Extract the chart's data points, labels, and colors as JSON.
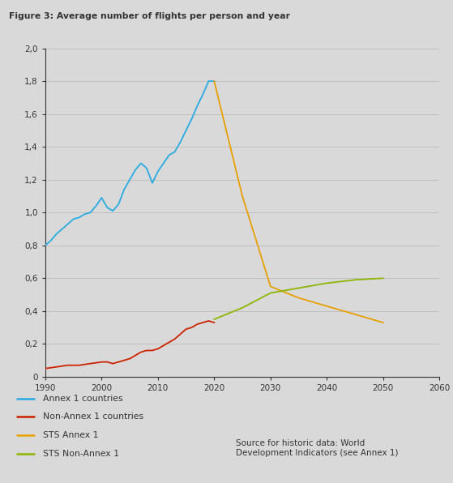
{
  "title": "Figure 3: Average number of flights per person and year",
  "background_color": "#d9d9d9",
  "plot_background_color": "#d9d9d9",
  "xlim": [
    1990,
    2060
  ],
  "ylim": [
    0,
    2.0
  ],
  "yticks": [
    0,
    0.2,
    0.4,
    0.6,
    0.8,
    1.0,
    1.2,
    1.4,
    1.6,
    1.8,
    2.0
  ],
  "xticks": [
    1990,
    2000,
    2010,
    2020,
    2030,
    2040,
    2050,
    2060
  ],
  "ytick_labels": [
    "0",
    "0,2",
    "0,4",
    "0,6",
    "0,8",
    "1,0",
    "1,2",
    "1,4",
    "1,6",
    "1,8",
    "2,0"
  ],
  "annex1": {
    "x": [
      1990,
      1991,
      1992,
      1993,
      1994,
      1995,
      1996,
      1997,
      1998,
      1999,
      2000,
      2001,
      2002,
      2003,
      2004,
      2005,
      2006,
      2007,
      2008,
      2009,
      2010,
      2011,
      2012,
      2013,
      2014,
      2015,
      2016,
      2017,
      2018,
      2019,
      2020
    ],
    "y": [
      0.8,
      0.83,
      0.87,
      0.9,
      0.93,
      0.96,
      0.97,
      0.99,
      1.0,
      1.04,
      1.09,
      1.03,
      1.01,
      1.05,
      1.14,
      1.2,
      1.26,
      1.3,
      1.27,
      1.18,
      1.25,
      1.3,
      1.35,
      1.37,
      1.43,
      1.5,
      1.57,
      1.65,
      1.72,
      1.8,
      1.8
    ],
    "color": "#29abe2",
    "label": "Annex 1 countries"
  },
  "non_annex1": {
    "x": [
      1990,
      1991,
      1992,
      1993,
      1994,
      1995,
      1996,
      1997,
      1998,
      1999,
      2000,
      2001,
      2002,
      2003,
      2004,
      2005,
      2006,
      2007,
      2008,
      2009,
      2010,
      2011,
      2012,
      2013,
      2014,
      2015,
      2016,
      2017,
      2018,
      2019,
      2020
    ],
    "y": [
      0.05,
      0.055,
      0.06,
      0.065,
      0.07,
      0.07,
      0.07,
      0.075,
      0.08,
      0.085,
      0.09,
      0.09,
      0.08,
      0.09,
      0.1,
      0.11,
      0.13,
      0.15,
      0.16,
      0.16,
      0.17,
      0.19,
      0.21,
      0.23,
      0.26,
      0.29,
      0.3,
      0.32,
      0.33,
      0.34,
      0.33
    ],
    "color": "#cc2200",
    "label": "Non-Annex 1 countries"
  },
  "sts_annex1": {
    "x": [
      2020,
      2025,
      2030,
      2035,
      2040,
      2045,
      2050
    ],
    "y": [
      1.8,
      1.1,
      0.55,
      0.48,
      0.43,
      0.38,
      0.33
    ],
    "color": "#e8a000",
    "label": "STS Annex 1"
  },
  "sts_non_annex1": {
    "x": [
      2020,
      2025,
      2030,
      2035,
      2040,
      2045,
      2050
    ],
    "y": [
      0.35,
      0.42,
      0.51,
      0.54,
      0.57,
      0.59,
      0.6
    ],
    "color": "#8db600",
    "label": "STS Non-Annex 1"
  },
  "source_text": "Source for historic data: World\nDevelopment Indicators (see Annex 1)",
  "grid_color": "#c0c0c0",
  "spine_color": "#333333",
  "tick_label_color": "#333333",
  "title_color": "#333333"
}
